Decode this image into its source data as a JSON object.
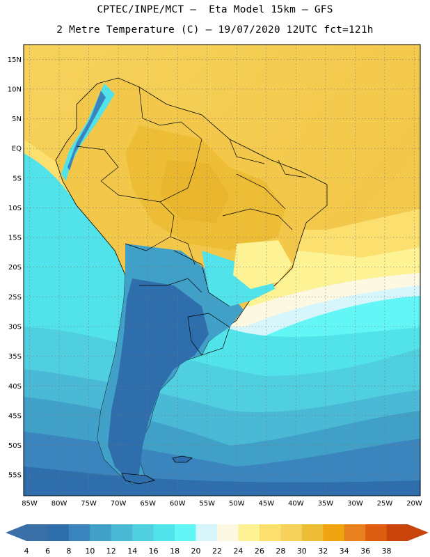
{
  "header": {
    "line1": "CPTEC/INPE/MCT –  Eta Model 15km – GFS",
    "line2": "2 Metre Temperature (C) – 19/07/2020 12UTC fct=121h"
  },
  "map": {
    "lat_labels": [
      "15N",
      "10N",
      "5N",
      "EQ",
      "5S",
      "10S",
      "15S",
      "20S",
      "25S",
      "30S",
      "35S",
      "40S",
      "45S",
      "50S",
      "55S"
    ],
    "lon_labels": [
      "85W",
      "80W",
      "75W",
      "70W",
      "65W",
      "60W",
      "55W",
      "50W",
      "45W",
      "40W",
      "35W",
      "30W",
      "25W",
      "20W"
    ],
    "lon_range": [
      -86,
      -19
    ],
    "lat_range": [
      17.5,
      -58.5
    ],
    "grid": "dotted"
  },
  "colorbar": {
    "labels": [
      "4",
      "6",
      "8",
      "10",
      "12",
      "14",
      "16",
      "18",
      "20",
      "22",
      "24",
      "26",
      "28",
      "30",
      "32",
      "34",
      "36",
      "38"
    ],
    "colors": [
      "#3a6fa8",
      "#2e6eac",
      "#3a85bd",
      "#41a0c8",
      "#49b9d6",
      "#4fcfdf",
      "#52e3ea",
      "#62f6f6",
      "#d6f6fb",
      "#fdf8e2",
      "#fdf294",
      "#fbe070",
      "#f6d25c",
      "#edbd35",
      "#f0a410",
      "#e88220",
      "#dd5e10",
      "#c9440a"
    ],
    "left_triangle_color": "#3a6fa8",
    "right_triangle_color": "#c9440a"
  }
}
